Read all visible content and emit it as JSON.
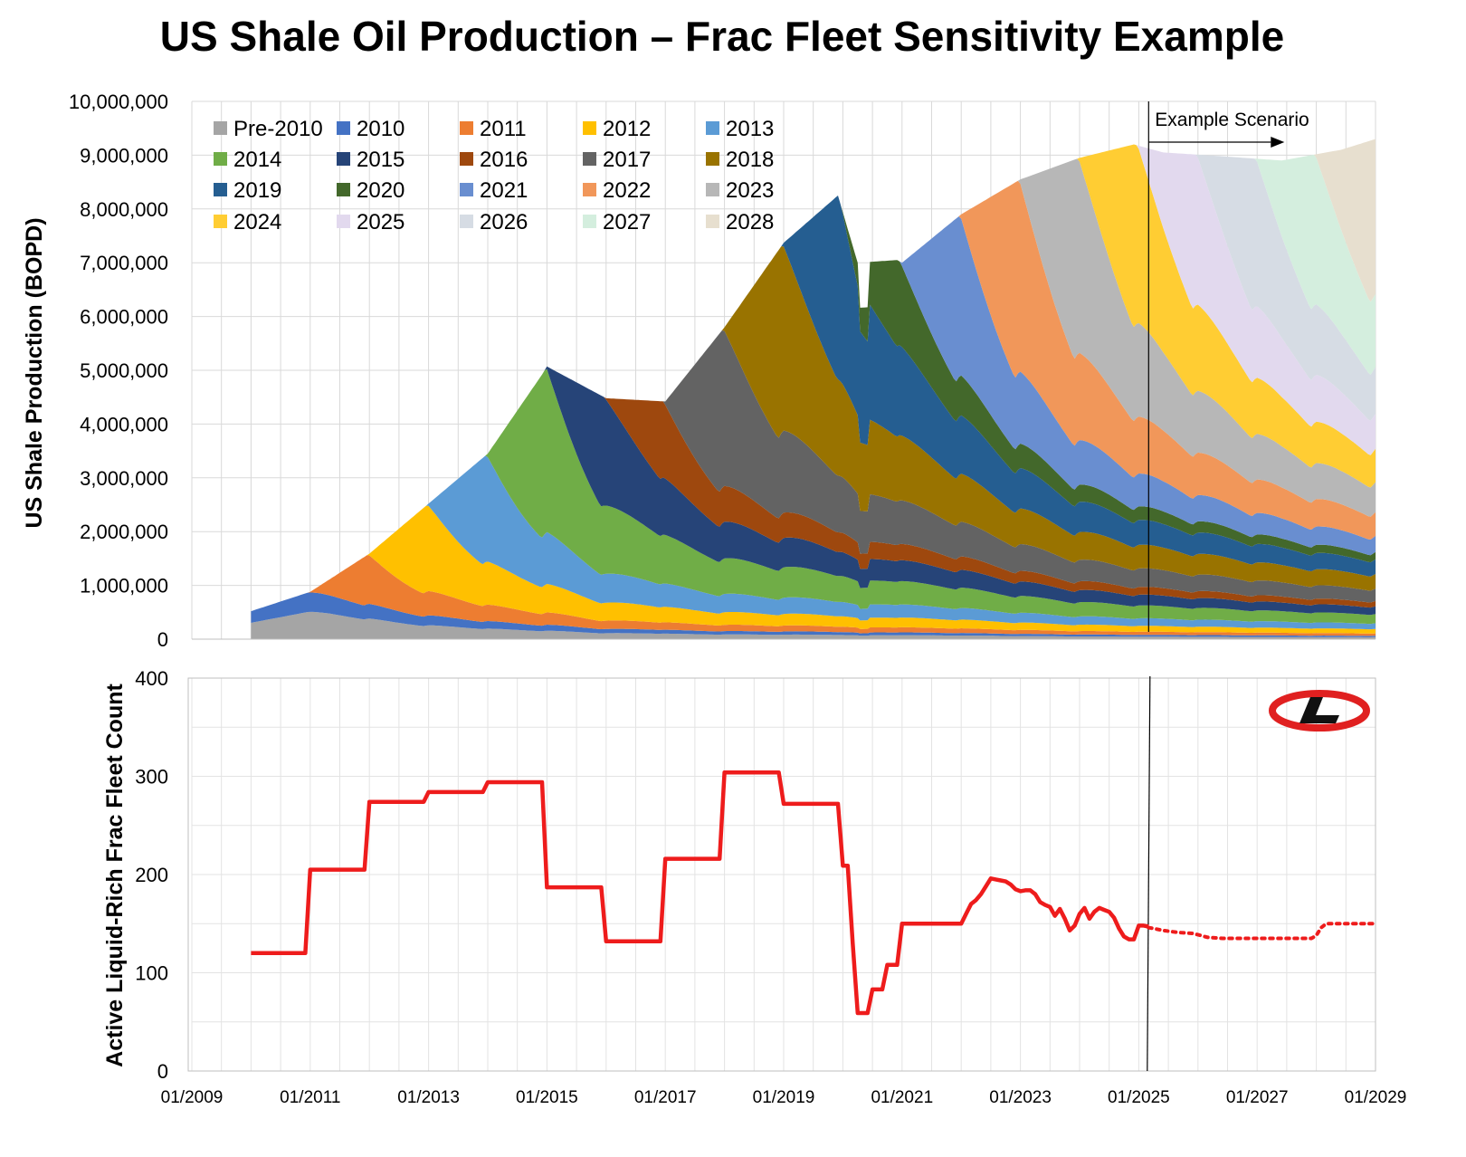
{
  "title": "US Shale Oil Production – Frac Fleet Sensitivity Example",
  "logo": "L",
  "colors": {
    "fleet_line": "#ee1c1c",
    "logo_red": "#e02020"
  },
  "chart_data": [
    {
      "type": "area",
      "ylabel": "US Shale Production (BOPD)",
      "ylim": [
        0,
        10000000
      ],
      "yticks": [
        "0",
        "1,000,000",
        "2,000,000",
        "3,000,000",
        "4,000,000",
        "5,000,000",
        "6,000,000",
        "7,000,000",
        "8,000,000",
        "9,000,000",
        "10,000,000"
      ],
      "xlim": [
        "2009-01",
        "2029-01"
      ],
      "legend_position": "top-left",
      "annotation": "Example Scenario",
      "scenario_start": "2025-03",
      "cohorts": [
        {
          "name": "Pre-2010",
          "color": "#a5a5a5",
          "launch": "2010-01",
          "peak": 520000,
          "decline": [
            0.55,
            0.25,
            0.5
          ],
          "stacked": false
        },
        {
          "name": "2010",
          "color": "#4472c4",
          "launch": "2010-01",
          "peak": 370000,
          "decline": [
            0.6,
            0.3,
            0.5
          ],
          "stacked": false
        },
        {
          "name": "2011",
          "color": "#ed7d31",
          "launch": "2011-01",
          "peak": 600000,
          "decline": [
            0.6,
            0.3,
            0.5
          ],
          "stacked": false
        },
        {
          "name": "2012",
          "color": "#ffc000",
          "launch": "2012-01",
          "peak": 1030000,
          "decline": [
            0.6,
            0.3,
            0.5
          ],
          "stacked": false
        },
        {
          "name": "2013",
          "color": "#5b9bd5",
          "launch": "2013-01",
          "peak": 1230000,
          "decline": [
            0.6,
            0.3,
            0.5
          ],
          "stacked": false
        },
        {
          "name": "2014",
          "color": "#70ad47",
          "launch": "2014-01",
          "peak": 1900000,
          "decline": [
            0.6,
            0.3,
            0.5
          ],
          "stacked": false
        },
        {
          "name": "2015",
          "color": "#264478",
          "launch": "2015-01",
          "peak": 1450000,
          "decline": [
            0.6,
            0.3,
            0.5
          ],
          "stacked": false
        },
        {
          "name": "2016",
          "color": "#9e480e",
          "launch": "2016-01",
          "peak": 930000,
          "decline": [
            0.6,
            0.3,
            0.5
          ],
          "stacked": false
        },
        {
          "name": "2017",
          "color": "#636363",
          "launch": "2017-01",
          "peak": 1980000,
          "decline": [
            0.6,
            0.3,
            0.5
          ],
          "stacked": false
        },
        {
          "name": "2018",
          "color": "#997300",
          "launch": "2018-01",
          "peak": 2180000,
          "decline": [
            0.6,
            0.3,
            0.5
          ],
          "stacked": false
        },
        {
          "name": "2019",
          "color": "#255e91",
          "launch": "2019-01",
          "peak": 1960000,
          "decline": [
            0.6,
            0.3,
            0.5
          ],
          "stacked": false
        },
        {
          "name": "2020",
          "color": "#43682b",
          "launch": "2020-01",
          "peak": 880000,
          "decline": [
            0.6,
            0.3,
            0.5
          ],
          "stacked": false
        },
        {
          "name": "2021",
          "color": "#698ed0",
          "launch": "2021-01",
          "peak": 1700000,
          "decline": [
            0.6,
            0.3,
            0.5
          ],
          "stacked": false
        },
        {
          "name": "2022",
          "color": "#f1975a",
          "launch": "2022-01",
          "peak": 2180000,
          "decline": [
            0.6,
            0.3,
            0.5
          ],
          "stacked": false
        },
        {
          "name": "2023",
          "color": "#b7b7b7",
          "launch": "2023-01",
          "peak": 2350000,
          "decline": [
            0.6,
            0.3,
            0.5
          ],
          "stacked": false
        },
        {
          "name": "2024",
          "color": "#ffcd33",
          "launch": "2024-01",
          "peak": 2150000,
          "decline": [
            0.6,
            0.3,
            0.5
          ],
          "stacked": false
        },
        {
          "name": "2025",
          "color": "#e2d9ee",
          "launch": "2025-01",
          "peak": 1800000,
          "decline": [
            0.6,
            0.3,
            0.5
          ],
          "stacked": false
        },
        {
          "name": "2026",
          "color": "#d6dce4",
          "launch": "2026-01",
          "peak": 1780000,
          "decline": [
            0.6,
            0.3,
            0.5
          ],
          "stacked": false
        },
        {
          "name": "2027",
          "color": "#d4eede",
          "launch": "2027-01",
          "peak": 1820000,
          "decline": [
            0.6,
            0.3,
            0.5
          ],
          "stacked": false
        },
        {
          "name": "2028",
          "color": "#e7dfcf",
          "launch": "2028-01",
          "peak": 1900000,
          "decline": [
            0.6,
            0.3,
            0.5
          ],
          "stacked": false
        }
      ],
      "total_envelope": {
        "x": [
          "2010-01",
          "2011-01",
          "2012-01",
          "2013-01",
          "2014-01",
          "2014-12",
          "2015-01",
          "2016-01",
          "2017-01",
          "2018-01",
          "2019-01",
          "2019-12",
          "2020-04",
          "2020-12",
          "2021-01",
          "2022-01",
          "2023-01",
          "2024-01",
          "2024-12",
          "2025-06",
          "2026-06",
          "2027-06",
          "2028-06",
          "2029-01"
        ],
        "y": [
          520000,
          880000,
          1590000,
          2520000,
          3450000,
          4920000,
          5070000,
          4480000,
          4420000,
          5800000,
          7370000,
          8250000,
          7000000,
          7050000,
          7000000,
          7900000,
          8550000,
          8950000,
          9200000,
          9050000,
          8980000,
          8900000,
          9100000,
          9300000
        ]
      }
    },
    {
      "type": "line",
      "ylabel": "Active Liquid-Rich Frac Fleet Count",
      "ylim": [
        0,
        400
      ],
      "yticks": [
        "0",
        "100",
        "200",
        "300",
        "400"
      ],
      "xlim": [
        "2009-01",
        "2029-01"
      ],
      "xticks": [
        "01/2009",
        "01/2011",
        "01/2013",
        "01/2015",
        "01/2017",
        "01/2019",
        "01/2021",
        "01/2023",
        "01/2025",
        "01/2027",
        "01/2029"
      ],
      "series": [
        {
          "style": "solid",
          "x": [
            "2010-01",
            "2010-12",
            "2011-01",
            "2011-12",
            "2012-01",
            "2012-12",
            "2013-01",
            "2013-12",
            "2014-01",
            "2014-12",
            "2015-01",
            "2015-12",
            "2016-01",
            "2016-12",
            "2017-01",
            "2017-12",
            "2018-01",
            "2018-12",
            "2019-01",
            "2019-12",
            "2020-01",
            "2020-02",
            "2020-03",
            "2020-04",
            "2020-05",
            "2020-06",
            "2020-07",
            "2020-08",
            "2020-09",
            "2020-10",
            "2020-11",
            "2020-12",
            "2021-01",
            "2021-12",
            "2022-01",
            "2022-02",
            "2022-03",
            "2022-04",
            "2022-05",
            "2022-06",
            "2022-07",
            "2022-08",
            "2022-09",
            "2022-10",
            "2022-11",
            "2022-12",
            "2023-01",
            "2023-02",
            "2023-03",
            "2023-04",
            "2023-05",
            "2023-06",
            "2023-07",
            "2023-08",
            "2023-09",
            "2023-10",
            "2023-11",
            "2023-12",
            "2024-01",
            "2024-02",
            "2024-03",
            "2024-04",
            "2024-05",
            "2024-06",
            "2024-07",
            "2024-08",
            "2024-09",
            "2024-10",
            "2024-11",
            "2024-12",
            "2025-01",
            "2025-02",
            "2025-03"
          ],
          "y": [
            120,
            120,
            205,
            205,
            274,
            274,
            284,
            284,
            294,
            294,
            187,
            187,
            132,
            132,
            216,
            216,
            304,
            304,
            272,
            272,
            209,
            209,
            130,
            59,
            59,
            59,
            83,
            83,
            83,
            108,
            108,
            108,
            150,
            150,
            150,
            160,
            170,
            174,
            180,
            188,
            196,
            195,
            194,
            193,
            190,
            185,
            183,
            184,
            184,
            180,
            172,
            169,
            167,
            158,
            165,
            155,
            143,
            148,
            160,
            166,
            155,
            162,
            166,
            164,
            162,
            156,
            145,
            137,
            134,
            134,
            148,
            148,
            147
          ]
        },
        {
          "style": "dotted",
          "x": [
            "2025-03",
            "2025-06",
            "2025-09",
            "2025-12",
            "2026-03",
            "2026-06",
            "2026-12",
            "2027-06",
            "2027-12",
            "2028-01",
            "2028-02",
            "2028-03",
            "2028-06",
            "2029-01"
          ],
          "y": [
            146,
            143,
            141,
            140,
            136,
            135,
            135,
            135,
            135,
            138,
            146,
            150,
            150,
            150
          ]
        }
      ]
    }
  ]
}
